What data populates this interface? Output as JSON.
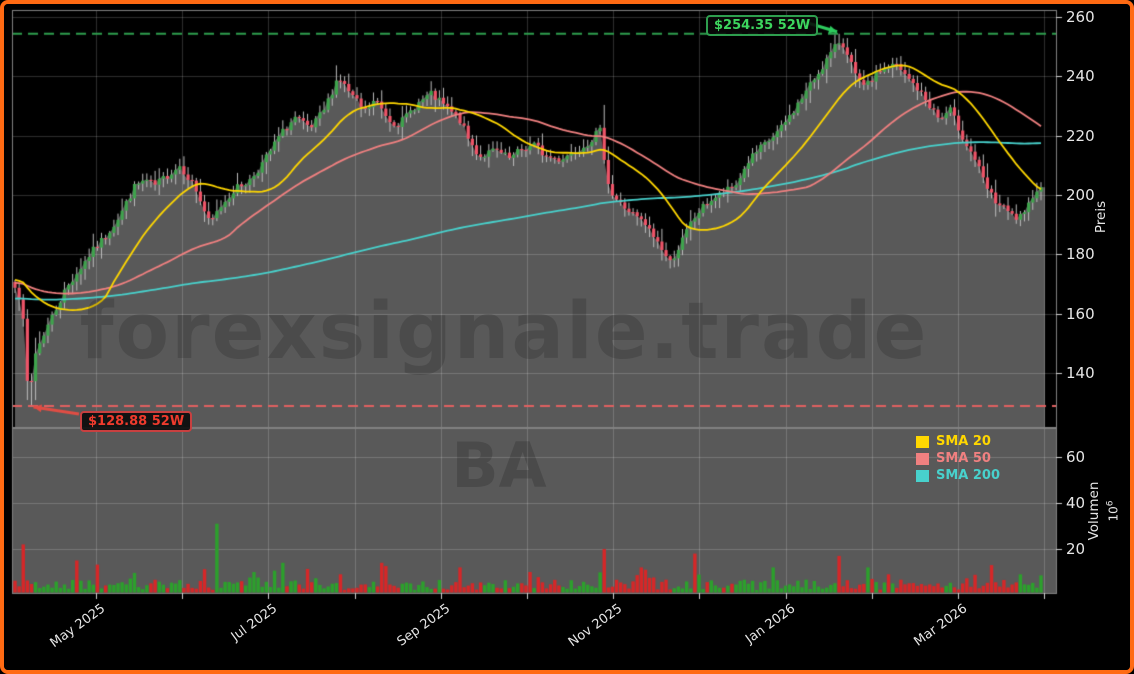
{
  "watermarks": {
    "site": "forexsignale.trade",
    "symbol": "BA"
  },
  "annotations": {
    "high": {
      "text": "$254.35 52W",
      "value": 254.35
    },
    "low": {
      "text": "$128.88 52W",
      "value": 128.88
    }
  },
  "colors": {
    "background": "#000000",
    "border": "#ff6a13",
    "panel_fill": "#595959",
    "grid": "rgba(255,255,255,0.18)",
    "spine": "#828282",
    "tick_mark": "#cfcfcf",
    "candle_up": "#3fa34d",
    "candle_down": "#ee5468",
    "wick": "#bdbdbd",
    "vol_up": "#2ca02c",
    "vol_down": "#d62728",
    "sma20": "#ffd700",
    "sma50": "#f08080",
    "sma200": "#48d1cc",
    "hline_high": "#2e9e4e",
    "hline_low": "#e06060",
    "arrow_high": "#2ecc5e",
    "arrow_low": "#e14d44"
  },
  "chart_data": {
    "type": "candlestick",
    "symbol": "BA",
    "num_bars": 250,
    "x_ticks": {
      "months_total": 12,
      "labeled": [
        0,
        2,
        4,
        6,
        8,
        10
      ],
      "labels": [
        "May 2025",
        "Jul 2025",
        "Sep 2025",
        "Nov 2025",
        "Jan 2026",
        "Mar 2026"
      ]
    },
    "price_axis": {
      "title": "Preis",
      "ticks": [
        260,
        240,
        220,
        200,
        180,
        160,
        140
      ]
    },
    "volume_axis": {
      "title": "Volumen",
      "unit_base": "10",
      "unit_exp": "6",
      "ticks": [
        60,
        40,
        20
      ]
    },
    "high_52w": 254.35,
    "low_52w": 128.88,
    "legend": [
      {
        "label": "SMA 20",
        "color": "#ffd700"
      },
      {
        "label": "SMA 50",
        "color": "#f08080"
      },
      {
        "label": "SMA 200",
        "color": "#48d1cc"
      }
    ],
    "sma_windows": [
      20,
      50,
      200
    ],
    "close_path": [
      [
        0.0,
        170
      ],
      [
        0.007,
        163
      ],
      [
        0.011,
        140
      ],
      [
        0.014,
        131
      ],
      [
        0.019,
        146
      ],
      [
        0.029,
        154
      ],
      [
        0.039,
        161
      ],
      [
        0.049,
        168
      ],
      [
        0.063,
        175
      ],
      [
        0.073,
        180
      ],
      [
        0.088,
        186
      ],
      [
        0.102,
        193
      ],
      [
        0.117,
        203
      ],
      [
        0.127,
        205
      ],
      [
        0.136,
        203
      ],
      [
        0.146,
        206
      ],
      [
        0.161,
        210
      ],
      [
        0.175,
        203
      ],
      [
        0.19,
        190
      ],
      [
        0.2,
        196
      ],
      [
        0.214,
        202
      ],
      [
        0.229,
        205
      ],
      [
        0.244,
        212
      ],
      [
        0.258,
        220
      ],
      [
        0.273,
        226
      ],
      [
        0.288,
        222
      ],
      [
        0.302,
        229
      ],
      [
        0.315,
        240
      ],
      [
        0.327,
        234
      ],
      [
        0.341,
        228
      ],
      [
        0.351,
        232
      ],
      [
        0.366,
        225
      ],
      [
        0.375,
        224
      ],
      [
        0.39,
        230
      ],
      [
        0.405,
        234
      ],
      [
        0.419,
        230
      ],
      [
        0.434,
        225
      ],
      [
        0.443,
        218
      ],
      [
        0.453,
        213
      ],
      [
        0.468,
        215
      ],
      [
        0.483,
        212
      ],
      [
        0.492,
        215
      ],
      [
        0.507,
        217
      ],
      [
        0.517,
        213
      ],
      [
        0.531,
        212
      ],
      [
        0.546,
        215
      ],
      [
        0.56,
        218
      ],
      [
        0.57,
        222
      ],
      [
        0.58,
        201
      ],
      [
        0.59,
        197
      ],
      [
        0.604,
        193
      ],
      [
        0.614,
        190
      ],
      [
        0.629,
        183
      ],
      [
        0.638,
        177
      ],
      [
        0.648,
        183
      ],
      [
        0.658,
        190
      ],
      [
        0.668,
        195
      ],
      [
        0.677,
        198
      ],
      [
        0.687,
        200
      ],
      [
        0.702,
        203
      ],
      [
        0.716,
        212
      ],
      [
        0.731,
        217
      ],
      [
        0.746,
        222
      ],
      [
        0.76,
        229
      ],
      [
        0.775,
        237
      ],
      [
        0.79,
        245
      ],
      [
        0.804,
        252
      ],
      [
        0.812,
        248
      ],
      [
        0.819,
        240
      ],
      [
        0.828,
        236
      ],
      [
        0.843,
        242
      ],
      [
        0.858,
        244
      ],
      [
        0.868,
        240
      ],
      [
        0.877,
        237
      ],
      [
        0.892,
        230
      ],
      [
        0.902,
        225
      ],
      [
        0.911,
        229
      ],
      [
        0.926,
        218
      ],
      [
        0.936,
        212
      ],
      [
        0.946,
        203
      ],
      [
        0.955,
        198
      ],
      [
        0.965,
        195
      ],
      [
        0.975,
        192
      ],
      [
        0.984,
        193
      ],
      [
        0.994,
        202
      ]
    ],
    "volume_spikes": [
      [
        0.01,
        22,
        "d"
      ],
      [
        0.059,
        15,
        "d"
      ],
      [
        0.195,
        31,
        "u"
      ],
      [
        0.234,
        10,
        "u"
      ],
      [
        0.261,
        14,
        "u"
      ],
      [
        0.317,
        9,
        "d"
      ],
      [
        0.358,
        14,
        "d"
      ],
      [
        0.434,
        12,
        "d"
      ],
      [
        0.502,
        10,
        "d"
      ],
      [
        0.573,
        20,
        "d"
      ],
      [
        0.609,
        12,
        "d"
      ],
      [
        0.663,
        18,
        "d"
      ],
      [
        0.74,
        12,
        "u"
      ],
      [
        0.805,
        17,
        "d"
      ],
      [
        0.833,
        12,
        "u"
      ],
      [
        0.853,
        9,
        "d"
      ],
      [
        0.95,
        13,
        "d"
      ],
      [
        0.98,
        9,
        "u"
      ]
    ]
  }
}
